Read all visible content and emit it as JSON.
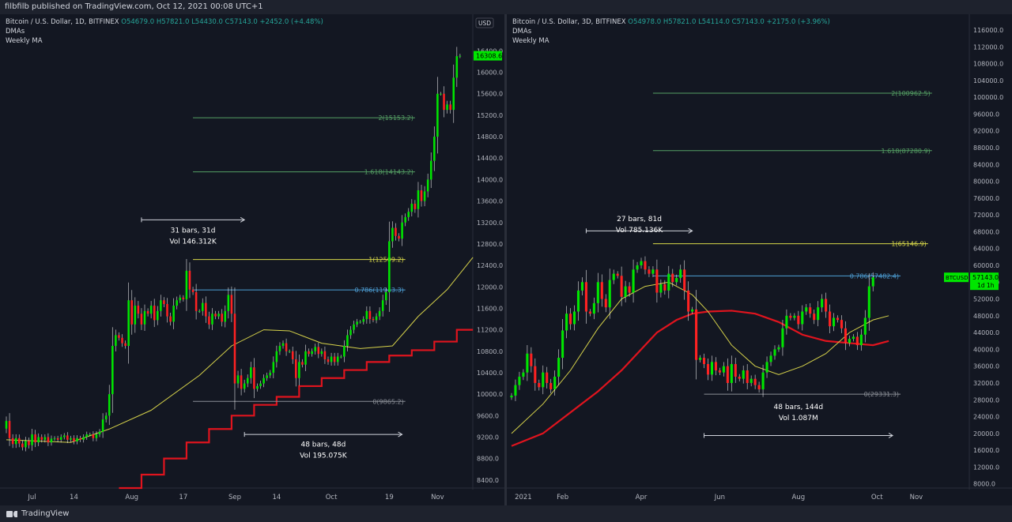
{
  "header": {
    "text": "filbfilb published on TradingView.com, Oct 12, 2021 00:08 UTC+1"
  },
  "footer": {
    "brand": "TradingView"
  },
  "colors": {
    "bg": "#131722",
    "up": "#00e600",
    "down": "#ff2222",
    "dma": "#d6d24a",
    "weekly_ma": "#e0141e",
    "fib": "#55a064",
    "fib_one": "#d8d84a",
    "fib_786": "#4d9fd6",
    "fib_zero": "#8a8e96"
  },
  "chart_data": [
    {
      "type": "candlestick",
      "legend": {
        "symbol": "Bitcoin / U.S. Dollar, 1D, BITFINEX",
        "open": "O54679.0",
        "high": "H57821.0",
        "low": "L54430.0",
        "close": "C57143.0",
        "change": "+2452.0 (+4.48%)",
        "indicator_1": "DMAs",
        "indicator_2": "Weekly MA"
      },
      "currency": "USD",
      "ylim": [
        8250,
        16700
      ],
      "y_ticks": [
        "16400.0",
        "16000.0",
        "15600.0",
        "15200.0",
        "14800.0",
        "14400.0",
        "14000.0",
        "13600.0",
        "13200.0",
        "12800.0",
        "12400.0",
        "12000.0",
        "11600.0",
        "11200.0",
        "10800.0",
        "10400.0",
        "10000.0",
        "9600.0",
        "9200.0",
        "8800.0",
        "8400.0"
      ],
      "x_ticks": [
        {
          "label": "Jul",
          "i": 8
        },
        {
          "label": "14",
          "i": 21
        },
        {
          "label": "Aug",
          "i": 39
        },
        {
          "label": "17",
          "i": 55
        },
        {
          "label": "Sep",
          "i": 71
        },
        {
          "label": "14",
          "i": 84
        },
        {
          "label": "Oct",
          "i": 101
        },
        {
          "label": "19",
          "i": 119
        },
        {
          "label": "Nov",
          "i": 134
        }
      ],
      "last_price": "16308.6",
      "fib_levels": [
        {
          "label": "2(15153.2)",
          "value": 15153.2,
          "i0": 58,
          "i1": 127,
          "kind": "fib"
        },
        {
          "label": "1.618(14143.2)",
          "value": 14143.2,
          "i0": 58,
          "i1": 127,
          "kind": "fib"
        },
        {
          "label": "1(12509.2)",
          "value": 12509.2,
          "i0": 58,
          "i1": 124,
          "kind": "one"
        },
        {
          "label": "0.786(11943.3)",
          "value": 11943.3,
          "i0": 58,
          "i1": 124,
          "kind": "786"
        },
        {
          "label": "0(9865.2)",
          "value": 9865.2,
          "i0": 58,
          "i1": 124,
          "kind": "zero"
        }
      ],
      "annotations": [
        {
          "line1": "31 bars, 31d",
          "line2": "Vol 146.312K",
          "arrow_i0": 42,
          "arrow_i1": 74,
          "arrow_y": 13250,
          "text_y": 13010
        },
        {
          "line1": "48 bars, 48d",
          "line2": "Vol 195.075K",
          "arrow_i0": 74,
          "arrow_i1": 123,
          "arrow_y": 9250,
          "text_y": 9020
        }
      ],
      "dma": [
        [
          0,
          9150
        ],
        [
          20,
          9100
        ],
        [
          32,
          9350
        ],
        [
          45,
          9700
        ],
        [
          60,
          10350
        ],
        [
          70,
          10900
        ],
        [
          80,
          11200
        ],
        [
          88,
          11180
        ],
        [
          98,
          10950
        ],
        [
          110,
          10850
        ],
        [
          120,
          10900
        ],
        [
          128,
          11450
        ],
        [
          137,
          11950
        ],
        [
          145,
          12550
        ]
      ],
      "weekly_ma": [
        [
          35,
          8250
        ],
        [
          42,
          8250
        ],
        [
          42,
          8500
        ],
        [
          49,
          8500
        ],
        [
          49,
          8800
        ],
        [
          56,
          8800
        ],
        [
          56,
          9100
        ],
        [
          63,
          9100
        ],
        [
          63,
          9350
        ],
        [
          70,
          9350
        ],
        [
          70,
          9600
        ],
        [
          77,
          9600
        ],
        [
          77,
          9800
        ],
        [
          84,
          9800
        ],
        [
          84,
          9950
        ],
        [
          91,
          9950
        ],
        [
          91,
          10150
        ],
        [
          98,
          10150
        ],
        [
          98,
          10300
        ],
        [
          105,
          10300
        ],
        [
          105,
          10450
        ],
        [
          112,
          10450
        ],
        [
          112,
          10600
        ],
        [
          119,
          10600
        ],
        [
          119,
          10720
        ],
        [
          126,
          10720
        ],
        [
          126,
          10820
        ],
        [
          133,
          10820
        ],
        [
          133,
          10980
        ],
        [
          140,
          10980
        ],
        [
          140,
          11200
        ],
        [
          145,
          11200
        ]
      ],
      "closes": [
        9500,
        9180,
        9070,
        9180,
        9080,
        9010,
        9130,
        9050,
        9250,
        9100,
        9200,
        9150,
        9200,
        9100,
        9170,
        9180,
        9150,
        9200,
        9230,
        9150,
        9180,
        9120,
        9180,
        9150,
        9200,
        9250,
        9250,
        9180,
        9250,
        9300,
        9530,
        9600,
        10000,
        10900,
        11100,
        11050,
        10950,
        10900,
        11750,
        11300,
        11650,
        11500,
        11300,
        11550,
        11500,
        11650,
        11380,
        11550,
        11750,
        11680,
        11450,
        11350,
        11650,
        11750,
        11800,
        11770,
        12300,
        11950,
        11900,
        11550,
        11550,
        11700,
        11450,
        11300,
        11500,
        11450,
        11500,
        11350,
        11550,
        11850,
        11500,
        10200,
        10350,
        10100,
        10200,
        10300,
        10500,
        10100,
        10150,
        10200,
        10300,
        10350,
        10400,
        10600,
        10800,
        10900,
        10950,
        10800,
        10800,
        10650,
        10300,
        10600,
        10550,
        10800,
        10750,
        10800,
        10880,
        10750,
        10800,
        10650,
        10600,
        10700,
        10600,
        10700,
        10700,
        10900,
        11100,
        11200,
        11300,
        11350,
        11350,
        11400,
        11550,
        11400,
        11380,
        11450,
        11550,
        11750,
        11900,
        12850,
        13100,
        12950,
        12900,
        13200,
        13300,
        13400,
        13550,
        13450,
        13800,
        13600,
        13780,
        14000,
        14350,
        14800,
        15600,
        15600,
        15300,
        15400,
        15300,
        15900,
        16300,
        16308
      ]
    },
    {
      "type": "candlestick",
      "legend": {
        "symbol": "Bitcoin / U.S. Dollar, 3D, BITFINEX",
        "open": "O54978.0",
        "high": "H57821.0",
        "low": "L54114.0",
        "close": "C57143.0",
        "change": "+2175.0 (+3.96%)",
        "indicator_1": "DMAs",
        "indicator_2": "Weekly MA"
      },
      "currency": "",
      "ylim": [
        7000,
        117500
      ],
      "y_ticks": [
        "116000.0",
        "112000.0",
        "108000.0",
        "104000.0",
        "100000.0",
        "96000.0",
        "92000.0",
        "88000.0",
        "84000.0",
        "80000.0",
        "76000.0",
        "72000.0",
        "68000.0",
        "64000.0",
        "60000.0",
        "56000.0",
        "52000.0",
        "48000.0",
        "44000.0",
        "40000.0",
        "36000.0",
        "32000.0",
        "28000.0",
        "24000.0",
        "20000.0",
        "16000.0",
        "12000.0",
        "8000.0"
      ],
      "x_ticks": [
        {
          "label": "2021",
          "i": 3
        },
        {
          "label": "Feb",
          "i": 13
        },
        {
          "label": "Apr",
          "i": 33
        },
        {
          "label": "Jun",
          "i": 53
        },
        {
          "label": "Aug",
          "i": 73
        },
        {
          "label": "Oct",
          "i": 93
        },
        {
          "label": "Nov",
          "i": 103
        }
      ],
      "last_price": "57143.0",
      "price_sub": "1d 1h",
      "symbol_tag": "BTCUSD",
      "fib_levels": [
        {
          "label": "2(100962.5)",
          "value": 100962.5,
          "i0": 36,
          "i1": 107,
          "kind": "fib"
        },
        {
          "label": "1.618(87280.9)",
          "value": 87280.9,
          "i0": 36,
          "i1": 107,
          "kind": "fib"
        },
        {
          "label": "1(65146.9)",
          "value": 65146.9,
          "i0": 36,
          "i1": 106,
          "kind": "one"
        },
        {
          "label": "0.786(57482.4)",
          "value": 57482.4,
          "i0": 36,
          "i1": 99,
          "kind": "786"
        },
        {
          "label": "0(29331.3)",
          "value": 29331.3,
          "i0": 49,
          "i1": 99,
          "kind": "zero"
        }
      ],
      "annotations": [
        {
          "line1": "27 bars, 81d",
          "line2": "Vol 785.136K",
          "arrow_i0": 19,
          "arrow_i1": 46,
          "arrow_y": 68200,
          "text_y": 70500
        },
        {
          "line1": "48 bars, 144d",
          "line2": "Vol 1.087M",
          "arrow_i0": 49,
          "arrow_i1": 97,
          "arrow_y": 19500,
          "text_y": 25800
        }
      ],
      "dma": [
        [
          0,
          20000
        ],
        [
          8,
          27000
        ],
        [
          15,
          35000
        ],
        [
          22,
          45000
        ],
        [
          28,
          52000
        ],
        [
          34,
          55000
        ],
        [
          40,
          56000
        ],
        [
          46,
          53000
        ],
        [
          50,
          49000
        ],
        [
          56,
          41000
        ],
        [
          62,
          36000
        ],
        [
          68,
          34000
        ],
        [
          74,
          36000
        ],
        [
          80,
          39000
        ],
        [
          86,
          44000
        ],
        [
          92,
          47000
        ],
        [
          96,
          48000
        ]
      ],
      "weekly_ma": [
        [
          0,
          17000
        ],
        [
          8,
          20000
        ],
        [
          15,
          25000
        ],
        [
          22,
          30000
        ],
        [
          28,
          35000
        ],
        [
          33,
          40000
        ],
        [
          37,
          44000
        ],
        [
          42,
          47000
        ],
        [
          46,
          48500
        ],
        [
          50,
          49000
        ],
        [
          56,
          49200
        ],
        [
          62,
          48500
        ],
        [
          68,
          46500
        ],
        [
          74,
          43500
        ],
        [
          80,
          42000
        ],
        [
          86,
          41500
        ],
        [
          92,
          41000
        ],
        [
          96,
          42000
        ]
      ],
      "closes": [
        29000,
        31500,
        33500,
        34500,
        39000,
        36000,
        32000,
        31000,
        34500,
        32000,
        30500,
        33500,
        38000,
        44500,
        48500,
        46000,
        49000,
        54000,
        56000,
        49000,
        48500,
        51000,
        56000,
        52000,
        50000,
        56500,
        58000,
        57500,
        52500,
        55000,
        53500,
        59000,
        60000,
        61000,
        59000,
        58000,
        59000,
        53500,
        55500,
        54000,
        58000,
        56000,
        57000,
        59000,
        54000,
        49000,
        49500,
        37500,
        38000,
        36500,
        34000,
        37000,
        35000,
        34500,
        36000,
        32000,
        36500,
        33500,
        33000,
        35000,
        32000,
        33000,
        31500,
        30500,
        34500,
        37000,
        38500,
        40000,
        40500,
        45000,
        48000,
        47500,
        48000,
        46000,
        49000,
        50000,
        48500,
        47000,
        50000,
        52000,
        49000,
        45500,
        47500,
        47000,
        45000,
        41500,
        42500,
        43000,
        41000,
        43500,
        47500,
        55000,
        57143
      ]
    }
  ]
}
